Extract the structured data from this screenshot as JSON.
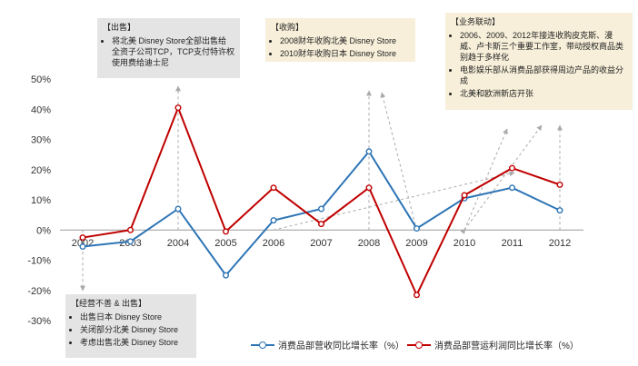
{
  "chart_data": {
    "type": "line",
    "title": "",
    "xlabel": "",
    "ylabel": "",
    "categories": [
      "2002",
      "2003",
      "2004",
      "2005",
      "2006",
      "2007",
      "2008",
      "2009",
      "2010",
      "2011",
      "2012"
    ],
    "ylim": [
      -30,
      50
    ],
    "yticks": [
      -30,
      -20,
      -10,
      0,
      10,
      20,
      30,
      40,
      50
    ],
    "ytick_labels": [
      "-30%",
      "-20%",
      "-10%",
      "0%",
      "10%",
      "20%",
      "30%",
      "40%",
      "50%"
    ],
    "grid": false,
    "legend_position": "bottom-right",
    "series": [
      {
        "name": "消费品部营收同比增长率（%）",
        "color": "#2e75b6",
        "values": [
          -5.5,
          -3.8,
          7.0,
          -15.0,
          3.2,
          7.0,
          26.0,
          0.5,
          10.5,
          14.0,
          6.5
        ]
      },
      {
        "name": "消费品部营运利润同比增长率（%）",
        "color": "#c00000",
        "values": [
          -2.5,
          0.0,
          40.5,
          -0.5,
          14.0,
          2.0,
          14.0,
          -21.5,
          11.5,
          20.5,
          15.0
        ]
      }
    ]
  },
  "annotations": [
    {
      "id": "sell",
      "title": "【出售】",
      "items": [
        "将北美 Disney Store全部出售给全资子公司TCP，TCP支付特许权使用费给迪士尼"
      ]
    },
    {
      "id": "acquire",
      "title": "【收购】",
      "items": [
        "2008财年收购北美 Disney Store",
        "2010财年收购日本 Disney Store"
      ]
    },
    {
      "id": "synergy",
      "title": "【业务联动】",
      "items": [
        "2006、2009、2012年接连收购皮克斯、漫威、卢卡斯三个重要工作室，带动授权商品类别趋于多样化",
        "电影娱乐部从消费品部获得周边产品的收益分成",
        "北美和欧洲新店开张"
      ]
    },
    {
      "id": "poor",
      "title": "【经营不善 & 出售】",
      "items": [
        "出售日本 Disney Store",
        "关闭部分北美 Disney Store",
        "考虑出售北美 Disney Store"
      ]
    }
  ],
  "colors": {
    "blue": "#2e75b6",
    "red": "#c00000",
    "arrow": "#aaaaaa",
    "box_gray": "#e4e4e4",
    "box_beige": "#f7efd9"
  }
}
